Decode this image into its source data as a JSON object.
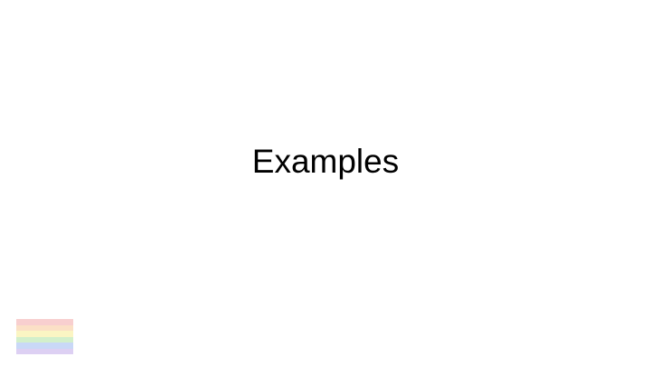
{
  "slide": {
    "title": "Examples"
  },
  "flag": {
    "icon": "pride-flag-icon",
    "stripe_colors": [
      "#F8CFCF",
      "#FBE0C6",
      "#FBF5C3",
      "#D3EFCB",
      "#C9D8F7",
      "#DDD0F3"
    ]
  }
}
